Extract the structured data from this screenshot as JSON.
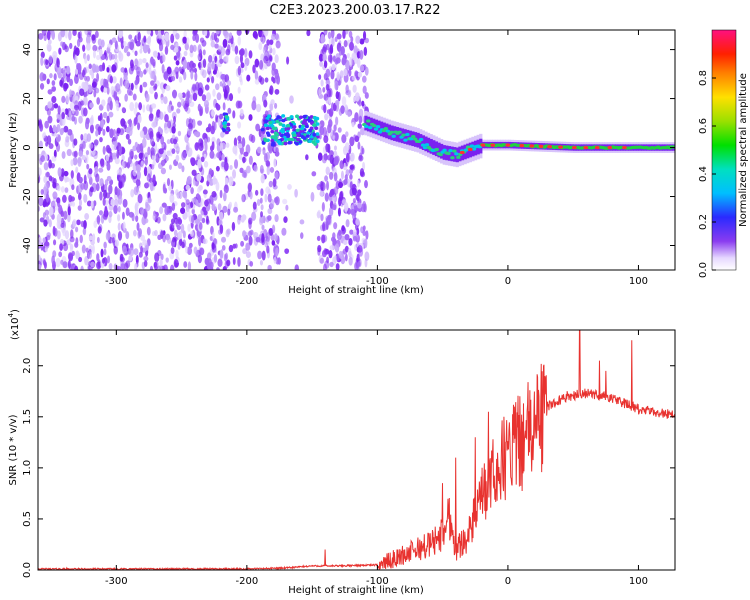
{
  "title": "C2E3.2023.200.03.17.R22",
  "chart_data": [
    {
      "type": "heatmap",
      "xlabel": "Height of straight line (km)",
      "ylabel": "Frequency (Hz)",
      "xlim": [
        -360,
        128
      ],
      "ylim": [
        -50,
        48
      ],
      "x_ticks": [
        -300,
        -200,
        -100,
        0,
        100
      ],
      "y_ticks": [
        -40,
        -20,
        0,
        20,
        40
      ],
      "x_tick_labels": [
        "-300",
        "-200",
        "-100",
        "0",
        "100"
      ],
      "y_tick_labels": [
        "-40",
        "-20",
        "0",
        "20",
        "40"
      ],
      "colorbar": {
        "label": "Normalized spectral amplitude",
        "range": [
          0,
          1
        ],
        "ticks": [
          0.0,
          0.2,
          0.4,
          0.6,
          0.8
        ],
        "tick_labels": [
          "0.0",
          "0.2",
          "0.4",
          "0.6",
          "0.8"
        ]
      },
      "ridge": [
        {
          "x": -110,
          "y": 10
        },
        {
          "x": -90,
          "y": 6
        },
        {
          "x": -70,
          "y": 3
        },
        {
          "x": -50,
          "y": -2
        },
        {
          "x": -40,
          "y": -3
        },
        {
          "x": -20,
          "y": 1
        },
        {
          "x": 0,
          "y": 1
        },
        {
          "x": 50,
          "y": 0
        },
        {
          "x": 128,
          "y": 0
        }
      ]
    },
    {
      "type": "line",
      "xlabel": "Height of straight line (km)",
      "ylabel": "SNR (10 * v/v)",
      "multiplier_label": "(x10",
      "multiplier_exponent": "4",
      "multiplier_close": ")",
      "xlim": [
        -360,
        128
      ],
      "ylim": [
        0,
        2.35
      ],
      "x_ticks": [
        -300,
        -200,
        -100,
        0,
        100
      ],
      "y_ticks": [
        0.0,
        0.5,
        1.0,
        1.5,
        2.0
      ],
      "x_tick_labels": [
        "-300",
        "-200",
        "-100",
        "0",
        "100"
      ],
      "y_tick_labels": [
        "0.0",
        "0.5",
        "1.0",
        "1.5",
        "2.0"
      ],
      "line_color": "#e8322f",
      "envelope": [
        {
          "x": -360,
          "y": 0.01
        },
        {
          "x": -200,
          "y": 0.01
        },
        {
          "x": -170,
          "y": 0.02
        },
        {
          "x": -150,
          "y": 0.04
        },
        {
          "x": -130,
          "y": 0.04
        },
        {
          "x": -100,
          "y": 0.05
        },
        {
          "x": -85,
          "y": 0.12
        },
        {
          "x": -70,
          "y": 0.2
        },
        {
          "x": -60,
          "y": 0.25
        },
        {
          "x": -50,
          "y": 0.35
        },
        {
          "x": -45,
          "y": 0.55
        },
        {
          "x": -40,
          "y": 0.2
        },
        {
          "x": -30,
          "y": 0.35
        },
        {
          "x": -20,
          "y": 0.7
        },
        {
          "x": -10,
          "y": 0.95
        },
        {
          "x": 0,
          "y": 1.15
        },
        {
          "x": 10,
          "y": 1.25
        },
        {
          "x": 20,
          "y": 1.4
        },
        {
          "x": 30,
          "y": 1.6
        },
        {
          "x": 45,
          "y": 1.7
        },
        {
          "x": 60,
          "y": 1.73
        },
        {
          "x": 75,
          "y": 1.7
        },
        {
          "x": 90,
          "y": 1.63
        },
        {
          "x": 100,
          "y": 1.57
        },
        {
          "x": 110,
          "y": 1.55
        },
        {
          "x": 128,
          "y": 1.52
        }
      ],
      "spikes": [
        {
          "x": -140,
          "y": 0.2
        },
        {
          "x": -50,
          "y": 0.85
        },
        {
          "x": -40,
          "y": 1.1
        },
        {
          "x": -25,
          "y": 1.3
        },
        {
          "x": -15,
          "y": 1.55
        },
        {
          "x": 5,
          "y": 1.6
        },
        {
          "x": 15,
          "y": 1.62
        },
        {
          "x": 55,
          "y": 2.35
        },
        {
          "x": 70,
          "y": 2.05
        },
        {
          "x": 75,
          "y": 1.95
        },
        {
          "x": 95,
          "y": 2.25
        }
      ]
    }
  ]
}
